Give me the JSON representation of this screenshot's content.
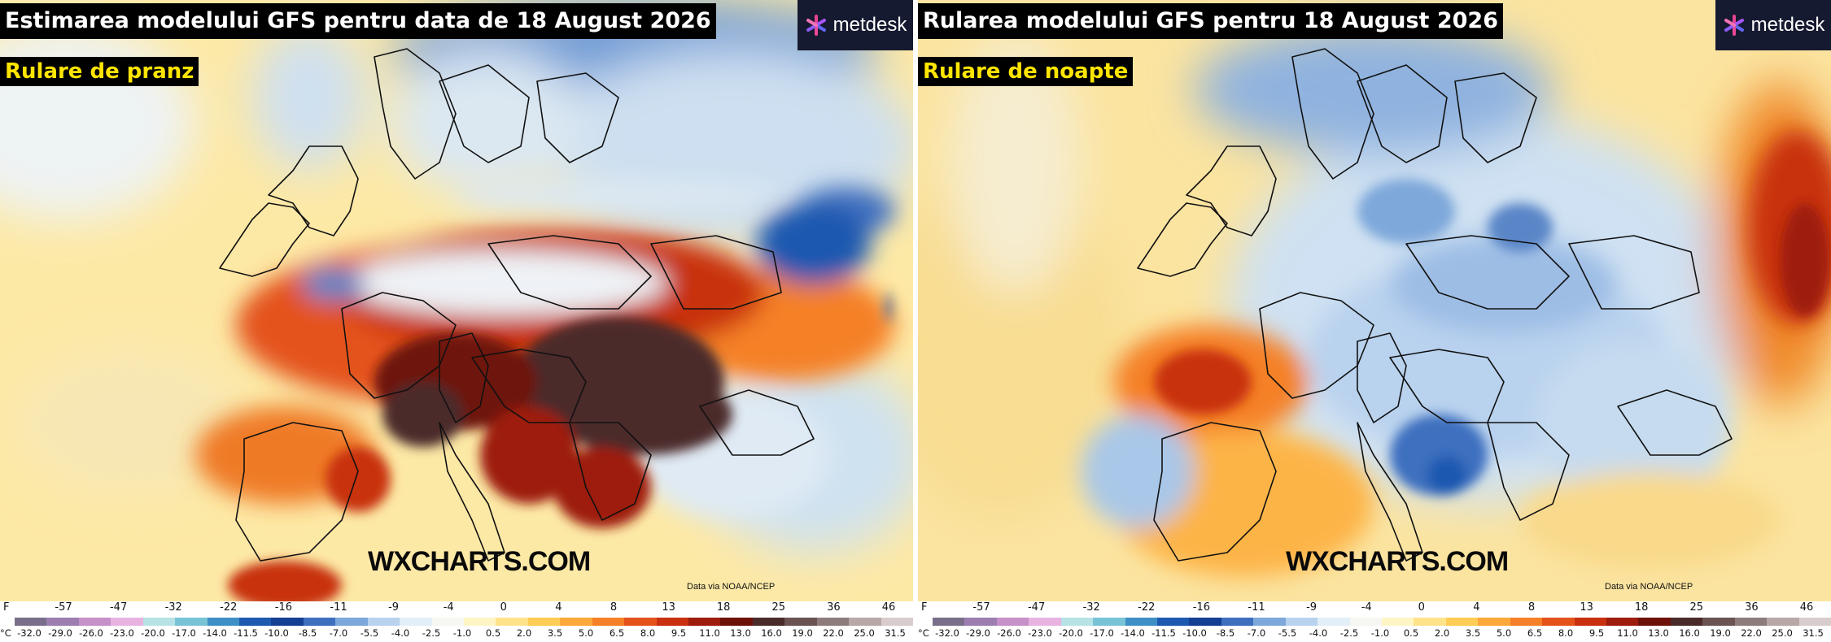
{
  "panels": [
    {
      "title": "Estimarea modelului GFS pentru data de 18 August 2026",
      "run_label": "Rulare de pranz",
      "logo_text": "metdesk",
      "watermark": "WXCHARTS.COM",
      "credit": "Data via NOAA/NCEP"
    },
    {
      "title": "Rularea modelului GFS pentru 18 August 2026",
      "run_label": "Rulare de noapte",
      "logo_text": "metdesk",
      "watermark": "WXCHARTS.COM",
      "credit": "Data via NOAA/NCEP"
    }
  ],
  "legend": {
    "f_unit": "F",
    "c_unit": "°C",
    "f_ticks": [
      "-57",
      "-47",
      "-32",
      "-22",
      "-16",
      "-11",
      "-9",
      "-4",
      "0",
      "4",
      "8",
      "13",
      "18",
      "25",
      "36",
      "46"
    ],
    "c_ticks": [
      "-32.0",
      "-29.0",
      "-26.0",
      "-23.0",
      "-20.0",
      "-17.0",
      "-14.0",
      "-11.5",
      "-10.0",
      "-8.5",
      "-7.0",
      "-5.5",
      "-4.0",
      "-2.5",
      "-1.0",
      "0.5",
      "2.0",
      "3.5",
      "5.0",
      "6.5",
      "8.0",
      "9.5",
      "11.0",
      "13.0",
      "16.0",
      "19.0",
      "22.0",
      "25.0",
      "31.5"
    ],
    "colors": [
      "#7a6f8a",
      "#9c7fb0",
      "#c690c8",
      "#e8b3e0",
      "#b7e3e6",
      "#79c3d6",
      "#3f8fc7",
      "#1e59b0",
      "#143f95",
      "#3e6fbf",
      "#7ea8da",
      "#b9d2ee",
      "#e2eef8",
      "#f6f7f2",
      "#fff5c4",
      "#ffe38a",
      "#ffcc55",
      "#fda83a",
      "#f58027",
      "#e4521a",
      "#c8300f",
      "#9e1c0b",
      "#6e1209",
      "#4b2a2a",
      "#6b5353",
      "#8e7c7c",
      "#b9a7a7",
      "#d9cccc"
    ]
  },
  "colors": {
    "title_bg": "#000000",
    "title_fg": "#ffffff",
    "run_fg": "#ffe500",
    "logo_bg": "#161a30"
  }
}
